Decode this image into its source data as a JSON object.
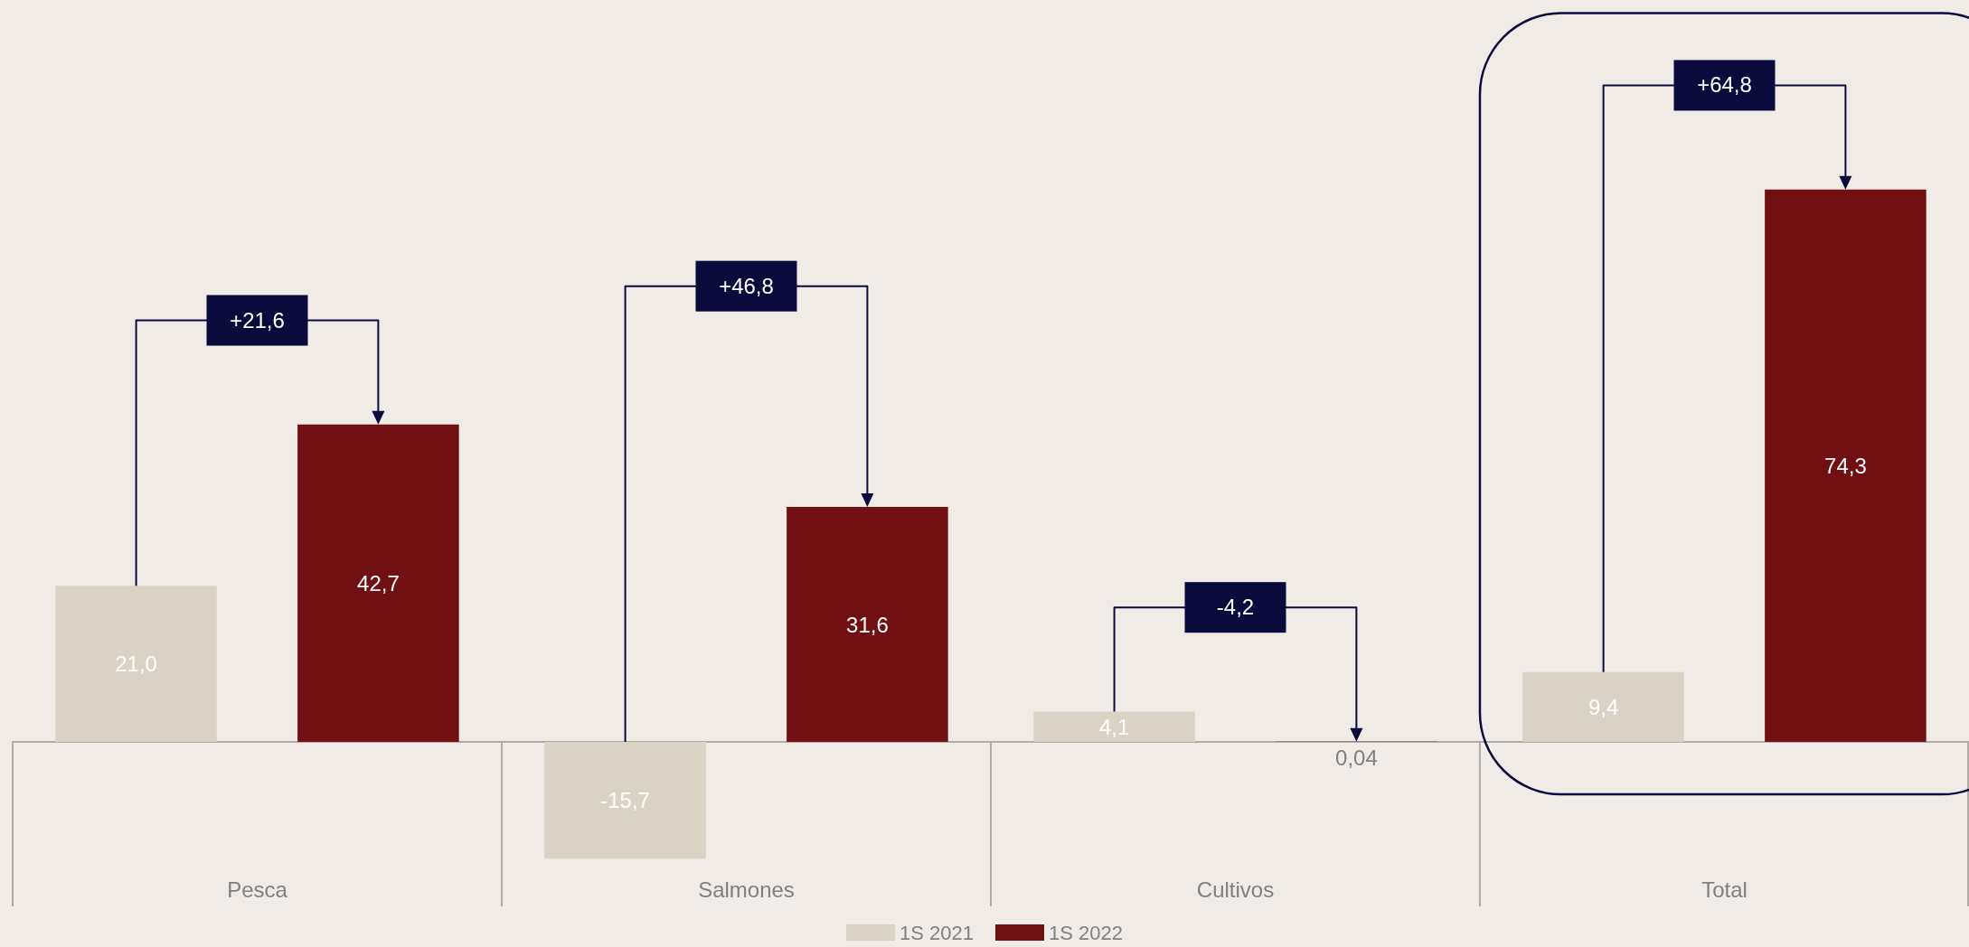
{
  "chart_data": {
    "type": "bar",
    "categories": [
      "Pesca",
      "Salmones",
      "Cultivos",
      "Total"
    ],
    "series": [
      {
        "name": "1S 2021",
        "color": "#dbd2c6",
        "values": [
          21.0,
          -15.7,
          4.1,
          9.4
        ],
        "value_labels": [
          "21,0",
          "-15,7",
          "4,1",
          "9,4"
        ]
      },
      {
        "name": "1S 2022",
        "color": "#701012",
        "values": [
          42.7,
          31.6,
          0.04,
          74.3
        ],
        "value_labels": [
          "42,7",
          "31,6",
          "0,04",
          "74,3"
        ]
      }
    ],
    "annotations": [
      "+21,6",
      "+46,8",
      "-4,2",
      "+64,8"
    ],
    "legend": "bottom",
    "grid": false
  }
}
